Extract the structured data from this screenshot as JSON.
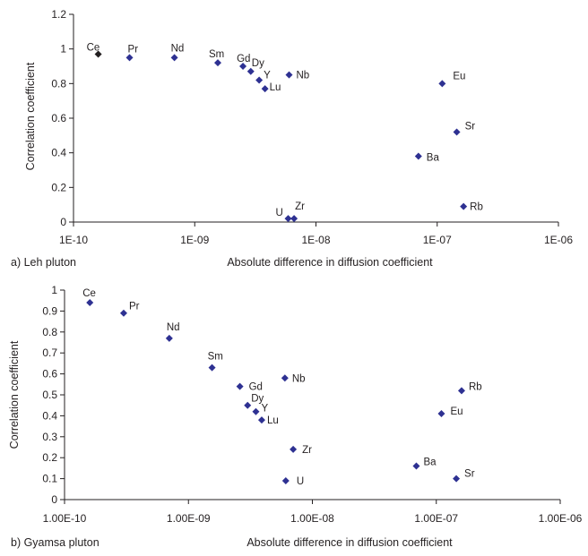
{
  "chart_data": [
    {
      "type": "scatter",
      "caption": "a) Leh pluton",
      "xlabel": "Absolute difference in diffusion coefficient",
      "ylabel": "Correlation coefficient",
      "xscale": "log",
      "xlim": [
        1e-10,
        1e-06
      ],
      "ylim": [
        0,
        1.2
      ],
      "x_ticks": [
        "1E-10",
        "1E-09",
        "1E-08",
        "1E-07",
        "1E-06"
      ],
      "y_ticks": [
        "0",
        "0.2",
        "0.4",
        "0.6",
        "0.8",
        "1",
        "1.2"
      ],
      "grid": false,
      "marker_color": "#2e3192",
      "points": [
        {
          "label": "Ce",
          "x": 1.6e-10,
          "y": 0.97
        },
        {
          "label": "Pr",
          "x": 2.9e-10,
          "y": 0.95
        },
        {
          "label": "Nd",
          "x": 6.8e-10,
          "y": 0.95
        },
        {
          "label": "Sm",
          "x": 1.55e-09,
          "y": 0.92
        },
        {
          "label": "Gd",
          "x": 2.5e-09,
          "y": 0.9
        },
        {
          "label": "Dy",
          "x": 2.9e-09,
          "y": 0.87
        },
        {
          "label": "Y",
          "x": 3.4e-09,
          "y": 0.82
        },
        {
          "label": "Lu",
          "x": 3.8e-09,
          "y": 0.77
        },
        {
          "label": "Nb",
          "x": 6e-09,
          "y": 0.85
        },
        {
          "label": "U",
          "x": 5.9e-09,
          "y": 0.02
        },
        {
          "label": "Zr",
          "x": 6.6e-09,
          "y": 0.02
        },
        {
          "label": "Eu",
          "x": 1.1e-07,
          "y": 0.8
        },
        {
          "label": "Sr",
          "x": 1.45e-07,
          "y": 0.52
        },
        {
          "label": "Ba",
          "x": 7e-08,
          "y": 0.38
        },
        {
          "label": "Rb",
          "x": 1.65e-07,
          "y": 0.09
        }
      ]
    },
    {
      "type": "scatter",
      "caption": "b) Gyamsa pluton",
      "xlabel": "Absolute difference in diffusion coefficient",
      "ylabel": "Correlation coefficient",
      "xscale": "log",
      "xlim": [
        1e-10,
        1e-06
      ],
      "ylim": [
        0,
        1
      ],
      "x_ticks": [
        "1.00E-10",
        "1.00E-09",
        "1.00E-08",
        "1.00E-07",
        "1.00E-06"
      ],
      "y_ticks": [
        "0",
        "0.1",
        "0.2",
        "0.3",
        "0.4",
        "0.5",
        "0.6",
        "0.7",
        "0.8",
        "0.9",
        "1"
      ],
      "grid": false,
      "marker_color": "#2e3192",
      "points": [
        {
          "label": "Ce",
          "x": 1.6e-10,
          "y": 0.94
        },
        {
          "label": "Pr",
          "x": 3e-10,
          "y": 0.89
        },
        {
          "label": "Nd",
          "x": 7e-10,
          "y": 0.77
        },
        {
          "label": "Sm",
          "x": 1.55e-09,
          "y": 0.63
        },
        {
          "label": "Gd",
          "x": 2.6e-09,
          "y": 0.54
        },
        {
          "label": "Nb",
          "x": 6e-09,
          "y": 0.58
        },
        {
          "label": "Dy",
          "x": 3e-09,
          "y": 0.45
        },
        {
          "label": "Y",
          "x": 3.5e-09,
          "y": 0.42
        },
        {
          "label": "Lu",
          "x": 3.9e-09,
          "y": 0.38
        },
        {
          "label": "Zr",
          "x": 7e-09,
          "y": 0.24
        },
        {
          "label": "U",
          "x": 6.1e-09,
          "y": 0.09
        },
        {
          "label": "Rb",
          "x": 1.6e-07,
          "y": 0.52
        },
        {
          "label": "Eu",
          "x": 1.1e-07,
          "y": 0.41
        },
        {
          "label": "Ba",
          "x": 6.9e-08,
          "y": 0.16
        },
        {
          "label": "Sr",
          "x": 1.45e-07,
          "y": 0.1
        }
      ]
    }
  ]
}
